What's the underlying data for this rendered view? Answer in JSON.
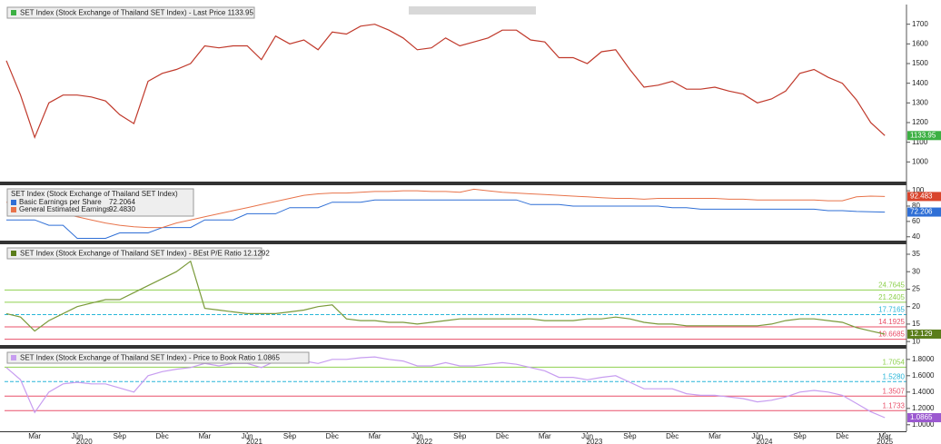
{
  "chart_data": [
    {
      "type": "line",
      "legend": "SET Index (Stock Exchange of Thailand SET Index) - Last Price 1133.95",
      "legend_color": "#3cb043",
      "series": [
        {
          "name": "Last Price",
          "color": "#c0392b",
          "tag": "1133.95",
          "tag_color": "#3cb043",
          "values": [
            1515,
            1340,
            1125,
            1300,
            1340,
            1340,
            1330,
            1310,
            1240,
            1195,
            1410,
            1450,
            1470,
            1500,
            1590,
            1580,
            1590,
            1590,
            1520,
            1640,
            1600,
            1620,
            1570,
            1660,
            1650,
            1690,
            1700,
            1670,
            1630,
            1570,
            1580,
            1630,
            1590,
            1610,
            1630,
            1670,
            1670,
            1620,
            1610,
            1530,
            1530,
            1500,
            1560,
            1570,
            1470,
            1380,
            1390,
            1410,
            1370,
            1370,
            1380,
            1360,
            1345,
            1300,
            1320,
            1360,
            1450,
            1470,
            1430,
            1400,
            1315,
            1200,
            1133.95
          ]
        }
      ],
      "ylim": [
        900,
        1800
      ],
      "yticks": [
        1000,
        1100,
        1200,
        1300,
        1400,
        1500,
        1600,
        1700
      ],
      "ref_lines": []
    },
    {
      "type": "line",
      "legend": "SET Index (Stock Exchange of Thailand SET Index)",
      "series": [
        {
          "name": "Basic Earnings per Share",
          "legend_value": "72.2064",
          "color": "#2f6fd6",
          "tag": "72.206",
          "tag_color": "#2f6fd6",
          "values": [
            62,
            62,
            62,
            55,
            55,
            38,
            38,
            38,
            45,
            45,
            45,
            52,
            52,
            52,
            62,
            62,
            62,
            70,
            70,
            70,
            78,
            78,
            78,
            85,
            85,
            85,
            88,
            88,
            88,
            88,
            88,
            88,
            88,
            88,
            88,
            88,
            88,
            82,
            82,
            82,
            80,
            80,
            80,
            80,
            80,
            80,
            80,
            78,
            78,
            76,
            76,
            76,
            76,
            76,
            76,
            76,
            76,
            76,
            74,
            74,
            73,
            72.5,
            72.2064
          ]
        },
        {
          "name": "General Estimated Earnings",
          "legend_value": "92.4830",
          "color": "#e8734a",
          "tag": "92.483",
          "tag_color": "#d9442b",
          "values": [
            85,
            84,
            80,
            75,
            70,
            66,
            62,
            58,
            55,
            53,
            52,
            52,
            58,
            62,
            66,
            70,
            74,
            78,
            82,
            86,
            90,
            94,
            96,
            97,
            97,
            98,
            99,
            99,
            100,
            100,
            99,
            99,
            98,
            102,
            100,
            98,
            97,
            96,
            95,
            94,
            93,
            92,
            91,
            90,
            90,
            89,
            90,
            90,
            90,
            90,
            90,
            89,
            89,
            88,
            88,
            88,
            88,
            88,
            87,
            87,
            92,
            93,
            92.483
          ]
        }
      ],
      "ylim": [
        35,
        106
      ],
      "yticks": [
        40,
        60,
        80,
        100
      ],
      "ref_lines": []
    },
    {
      "type": "line",
      "legend": "SET Index (Stock Exchange of Thailand SET Index) - BEst P/E Ratio 12.1292",
      "legend_color": "#5a7d1a",
      "series": [
        {
          "name": "BEst P/E Ratio",
          "color": "#7a9a3a",
          "tag": "12.129",
          "tag_color": "#5a7d1a",
          "values": [
            18,
            17,
            13,
            16,
            18,
            20,
            21,
            22,
            22,
            24,
            26,
            28,
            30,
            33,
            19.5,
            19,
            18.5,
            18,
            18,
            18,
            18.5,
            19,
            20,
            20.5,
            16.5,
            16,
            16,
            15.5,
            15.5,
            15,
            15.5,
            16,
            16.5,
            16.5,
            16.5,
            16.5,
            16.5,
            16.5,
            16,
            16,
            16,
            16.5,
            16.5,
            17,
            16.5,
            15.5,
            15,
            15,
            14.5,
            14.5,
            14.5,
            14.5,
            14.5,
            14.5,
            15,
            16,
            16.5,
            16.5,
            16,
            15.5,
            14,
            13,
            12.1292
          ]
        }
      ],
      "ylim": [
        9,
        37.6
      ],
      "yticks": [
        10,
        15,
        20,
        25,
        30,
        35
      ],
      "ref_lines": [
        {
          "value": 24.7645,
          "color": "#8fd14f"
        },
        {
          "value": 21.2405,
          "color": "#8fd14f"
        },
        {
          "value": 17.7165,
          "color": "#29b6d8",
          "dashed": true
        },
        {
          "value": 14.1925,
          "color": "#e8506a"
        },
        {
          "value": 10.6685,
          "color": "#e8506a"
        }
      ]
    },
    {
      "type": "line",
      "legend": "SET Index (Stock Exchange of Thailand SET Index) - Price to Book Ratio 1.0865",
      "legend_color": "#c79df0",
      "series": [
        {
          "name": "Price to Book Ratio",
          "color": "#c79df0",
          "tag": "1.0865",
          "tag_color": "#9b59d0",
          "values": [
            1.7,
            1.55,
            1.15,
            1.4,
            1.5,
            1.52,
            1.5,
            1.5,
            1.45,
            1.4,
            1.6,
            1.65,
            1.68,
            1.7,
            1.75,
            1.72,
            1.75,
            1.75,
            1.7,
            1.78,
            1.76,
            1.78,
            1.75,
            1.8,
            1.8,
            1.82,
            1.83,
            1.8,
            1.78,
            1.72,
            1.72,
            1.76,
            1.72,
            1.72,
            1.74,
            1.76,
            1.74,
            1.7,
            1.66,
            1.58,
            1.58,
            1.55,
            1.58,
            1.6,
            1.52,
            1.44,
            1.44,
            1.44,
            1.38,
            1.36,
            1.36,
            1.34,
            1.32,
            1.28,
            1.3,
            1.34,
            1.4,
            1.42,
            1.4,
            1.36,
            1.26,
            1.16,
            1.0865
          ]
        }
      ],
      "ylim": [
        0.92,
        1.92
      ],
      "yticks": [
        {
          "value": 1,
          "label": "1.0000"
        },
        {
          "value": 1.2,
          "label": "1.2000"
        },
        {
          "value": 1.4,
          "label": "1.4000"
        },
        {
          "value": 1.6,
          "label": "1.6000"
        },
        {
          "value": 1.8,
          "label": "1.8000"
        }
      ],
      "ref_lines": [
        {
          "value": 1.7054,
          "color": "#8fd14f"
        },
        {
          "value": 1.528,
          "label": "1.5280",
          "color": "#29b6d8",
          "dashed": true
        },
        {
          "value": 1.3507,
          "color": "#e8506a"
        },
        {
          "value": 1.1733,
          "color": "#e8506a"
        }
      ],
      "categories": [
        null,
        null,
        "Mar",
        null,
        null,
        "Jun",
        null,
        null,
        "Sep",
        null,
        null,
        "Dec",
        null,
        null,
        "Mar",
        null,
        null,
        "Jun",
        null,
        null,
        "Sep",
        null,
        null,
        "Dec",
        null,
        null,
        "Mar",
        null,
        null,
        "Jun",
        null,
        null,
        "Sep",
        null,
        null,
        "Dec",
        null,
        null,
        "Mar",
        null,
        null,
        "Jun",
        null,
        null,
        "Sep",
        null,
        null,
        "Dec",
        null,
        null,
        "Mar",
        null,
        null,
        "Jun",
        null,
        null,
        "Sep",
        null,
        null,
        "Dec",
        null,
        null,
        "Mar"
      ],
      "year_labels": [
        "2020",
        "2021",
        "2022",
        "2023",
        "2024",
        "2025"
      ]
    }
  ]
}
